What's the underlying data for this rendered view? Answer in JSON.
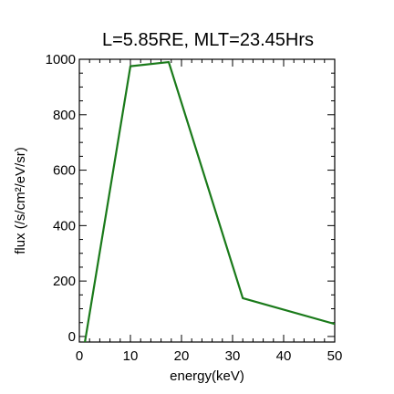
{
  "chart_data": {
    "type": "line",
    "title": "L=5.85RE, MLT=23.45Hrs",
    "xlabel": "energy(keV)",
    "ylabel": "flux (/s/cm²/eV/sr)",
    "xlim": [
      0,
      50
    ],
    "ylim": [
      -20,
      1000
    ],
    "x_ticks": [
      0,
      10,
      20,
      30,
      40,
      50
    ],
    "y_ticks": [
      0,
      200,
      400,
      600,
      800,
      1000
    ],
    "grid": false,
    "legend": "none",
    "series": [
      {
        "color": "#1a7a1a",
        "x": [
          0.5,
          1.0,
          10.0,
          17.5,
          32.0,
          50.0
        ],
        "y": [
          -30,
          -30,
          975,
          990,
          138,
          45
        ]
      }
    ]
  }
}
